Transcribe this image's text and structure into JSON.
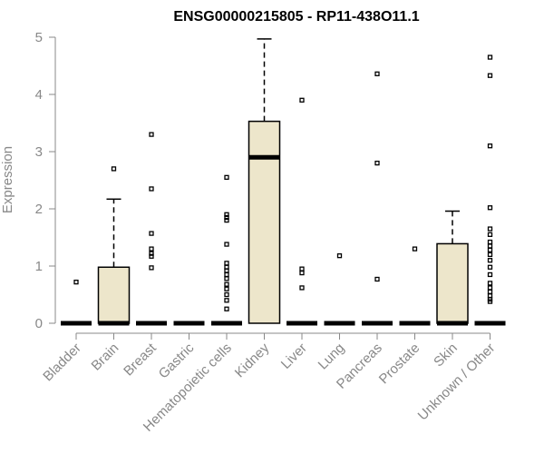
{
  "chart_data": {
    "type": "boxplot",
    "title": "ENSG00000215805 - RP11-438O11.1",
    "ylabel": "Expression",
    "ylim": [
      0,
      5
    ],
    "yticks": [
      0,
      1,
      2,
      3,
      4,
      5
    ],
    "grid": false,
    "colors": {
      "box_fill": "#ede6cb",
      "axis": "#888888",
      "title": "#000000"
    },
    "categories": [
      "Bladder",
      "Brain",
      "Breast",
      "Gastric",
      "Hematopoietic cells",
      "Kidney",
      "Liver",
      "Lung",
      "Pancreas",
      "Prostate",
      "Skin",
      "Unknown / Other"
    ],
    "boxes": [
      {
        "name": "Bladder",
        "min": 0,
        "q1": 0,
        "median": 0,
        "q3": 0,
        "max": 0,
        "outliers": [
          0.72
        ]
      },
      {
        "name": "Brain",
        "min": 0,
        "q1": 0,
        "median": 0,
        "q3": 0.98,
        "max": 2.17,
        "outliers": [
          2.7
        ]
      },
      {
        "name": "Breast",
        "min": 0,
        "q1": 0,
        "median": 0,
        "q3": 0,
        "max": 0,
        "outliers": [
          0.97,
          1.17,
          1.22,
          1.3,
          1.57,
          2.35,
          3.3
        ]
      },
      {
        "name": "Gastric",
        "min": 0,
        "q1": 0,
        "median": 0,
        "q3": 0,
        "max": 0,
        "outliers": []
      },
      {
        "name": "Hematopoietic cells",
        "min": 0,
        "q1": 0,
        "median": 0,
        "q3": 0,
        "max": 0,
        "outliers": [
          0.25,
          0.4,
          0.5,
          0.6,
          0.68,
          0.78,
          0.85,
          0.92,
          0.98,
          1.05,
          1.38,
          1.8,
          1.85,
          1.9,
          2.55
        ]
      },
      {
        "name": "Kidney",
        "min": 0,
        "q1": 0,
        "median": 2.9,
        "q3": 3.53,
        "max": 4.97,
        "outliers": []
      },
      {
        "name": "Liver",
        "min": 0,
        "q1": 0,
        "median": 0,
        "q3": 0,
        "max": 0,
        "outliers": [
          0.62,
          0.88,
          0.95,
          3.9
        ]
      },
      {
        "name": "Lung",
        "min": 0,
        "q1": 0,
        "median": 0,
        "q3": 0,
        "max": 0,
        "outliers": [
          1.18
        ]
      },
      {
        "name": "Pancreas",
        "min": 0,
        "q1": 0,
        "median": 0,
        "q3": 0,
        "max": 0,
        "outliers": [
          0.77,
          2.8,
          4.36
        ]
      },
      {
        "name": "Prostate",
        "min": 0,
        "q1": 0,
        "median": 0,
        "q3": 0,
        "max": 0,
        "outliers": [
          1.3
        ]
      },
      {
        "name": "Skin",
        "min": 0,
        "q1": 0,
        "median": 0,
        "q3": 1.39,
        "max": 1.96,
        "outliers": []
      },
      {
        "name": "Unknown / Other",
        "min": 0,
        "q1": 0,
        "median": 0,
        "q3": 0,
        "max": 0,
        "outliers": [
          0.38,
          0.42,
          0.48,
          0.55,
          0.62,
          0.7,
          0.85,
          0.98,
          1.1,
          1.2,
          1.28,
          1.35,
          1.42,
          1.55,
          1.65,
          2.02,
          3.1,
          4.33,
          4.65
        ]
      }
    ]
  }
}
